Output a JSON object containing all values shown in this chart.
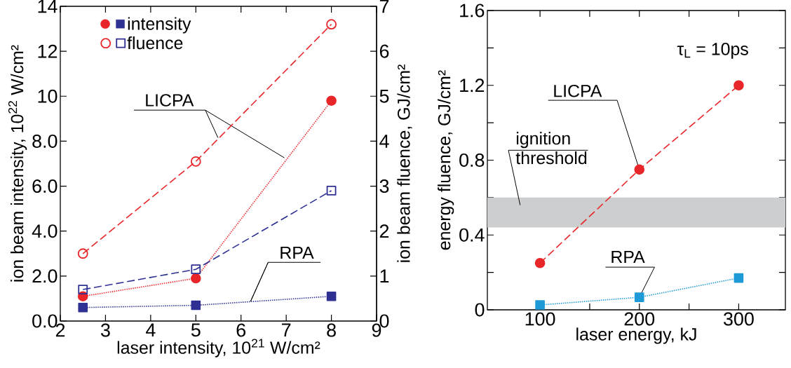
{
  "chart_data": [
    {
      "type": "line",
      "x": [
        2.5,
        5,
        8
      ],
      "xlabel": "laser intensity, 10$^{21}$ W/cm²",
      "ylabel": "ion beam intensity, 10$^{22}$ W/cm²",
      "y2label": "ion beam fluence, GJ/cm²",
      "xlim": [
        2,
        9
      ],
      "xticks": [
        2,
        3,
        4,
        5,
        6,
        7,
        8,
        9
      ],
      "ylim": [
        0,
        14
      ],
      "yticks": [
        {
          "value": 0,
          "label": "0.0"
        },
        {
          "value": 2,
          "label": "2.0"
        },
        {
          "value": 4,
          "label": "4.0"
        },
        {
          "value": 6,
          "label": "6.0"
        },
        {
          "value": 8,
          "label": "8.0"
        },
        10,
        12,
        14
      ],
      "y2lim": [
        0,
        7
      ],
      "y2ticks": [
        0,
        1,
        2,
        3,
        4,
        5,
        6,
        7
      ],
      "legend": "top left",
      "series": [
        {
          "color": "#e8262a",
          "values": [
            1.1,
            1.9,
            9.8
          ],
          "marker": "circle",
          "line_style": "dotted"
        },
        {
          "name": "intensity",
          "color": "#2e3192",
          "values": [
            0.6,
            0.7,
            1.1
          ],
          "marker": "square",
          "line_style": "dotted"
        },
        {
          "color": "#e8262a",
          "values": [
            1.5,
            3.55,
            6.6
          ],
          "marker": "circle",
          "line_style": "dashed",
          "axis": "y2"
        },
        {
          "name": "fluence",
          "color": "#2e3192",
          "values": [
            0.7,
            1.15,
            2.9
          ],
          "marker": "square",
          "line_style": "dashed",
          "axis": "y2"
        }
      ],
      "annotations": [
        {
          "text": "LICPA",
          "x": 5.49,
          "y": 8.15
        },
        {
          "text": "RPA",
          "x": 6.21,
          "y": 0.87
        }
      ]
    },
    {
      "type": "line",
      "x": [
        100,
        200,
        300
      ],
      "xlabel": "laser energy, kJ",
      "ylabel": "energy fluence, GJ/cm²",
      "xlim": [
        47,
        347
      ],
      "xticks": [
        100,
        {
          "value": 150,
          "label": null
        },
        200,
        {
          "value": 250,
          "label": null
        },
        300
      ],
      "ylim": [
        0,
        1.6
      ],
      "yticks": [
        0,
        {
          "value": 0.2,
          "label": null
        },
        0.4,
        {
          "value": 0.6,
          "label": null
        },
        0.8,
        {
          "value": 1.0,
          "label": null
        },
        1.2,
        {
          "value": 1.4,
          "label": null
        },
        1.6
      ],
      "series": [
        {
          "color": "#e8262a",
          "values": [
            0.25,
            0.75,
            1.2
          ],
          "marker": "circle",
          "line_style": "dashed"
        },
        {
          "color": "#1e9ad6",
          "values": [
            0.026,
            0.067,
            0.17
          ],
          "marker": "square",
          "line_style": "dotted"
        }
      ],
      "bands": [
        {
          "axis": "y",
          "from": 0.44,
          "to": 0.6,
          "label": "ignition threshold",
          "color": "#cdcecf"
        }
      ],
      "annotations": [
        "τ$_{L}$ = 10ps",
        {
          "text": "LICPA",
          "x": 200,
          "y": 0.75
        },
        {
          "text": "RPA",
          "x": 200,
          "y": 0.067
        }
      ]
    }
  ]
}
